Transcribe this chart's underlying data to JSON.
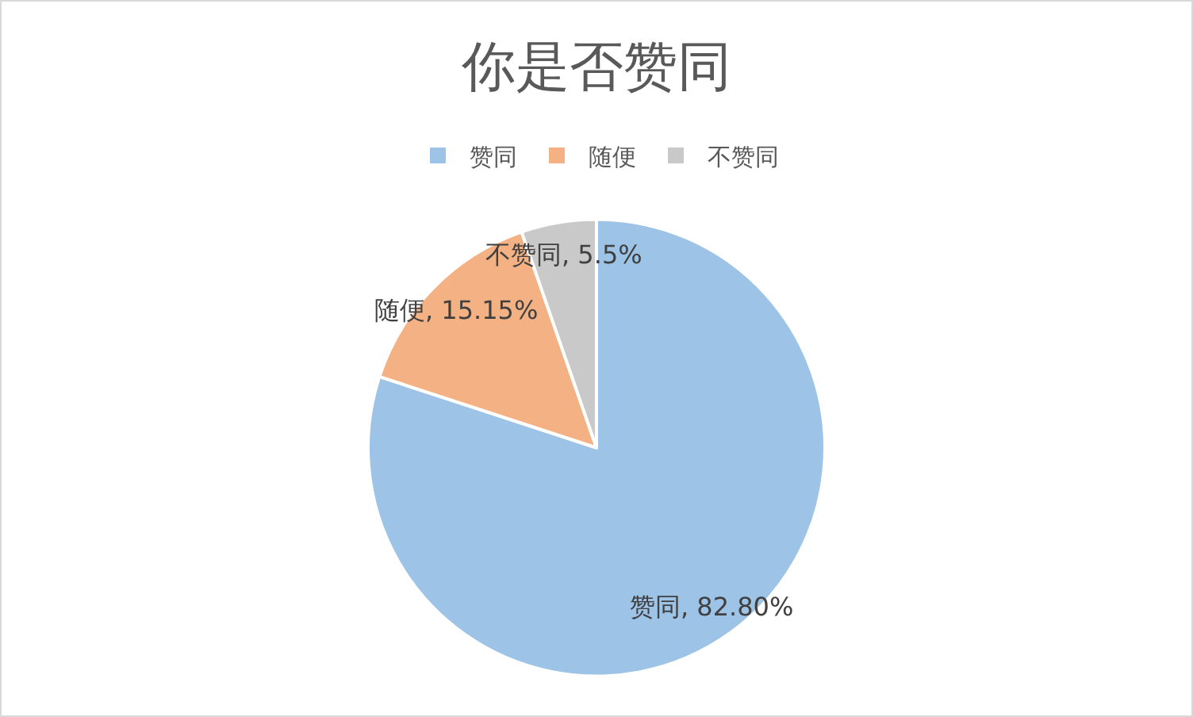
{
  "chart_data": {
    "type": "pie",
    "title": "你是否赞同",
    "categories": [
      "赞同",
      "随便",
      "不赞同"
    ],
    "values": [
      82.8,
      15.15,
      5.5
    ],
    "value_labels": [
      "赞同, 82.80%",
      "随便, 15.15%",
      "不赞同, 5.5%"
    ],
    "colors": [
      "#9dc3e6",
      "#f4b183",
      "#c9c9c9"
    ],
    "legend": "top"
  }
}
